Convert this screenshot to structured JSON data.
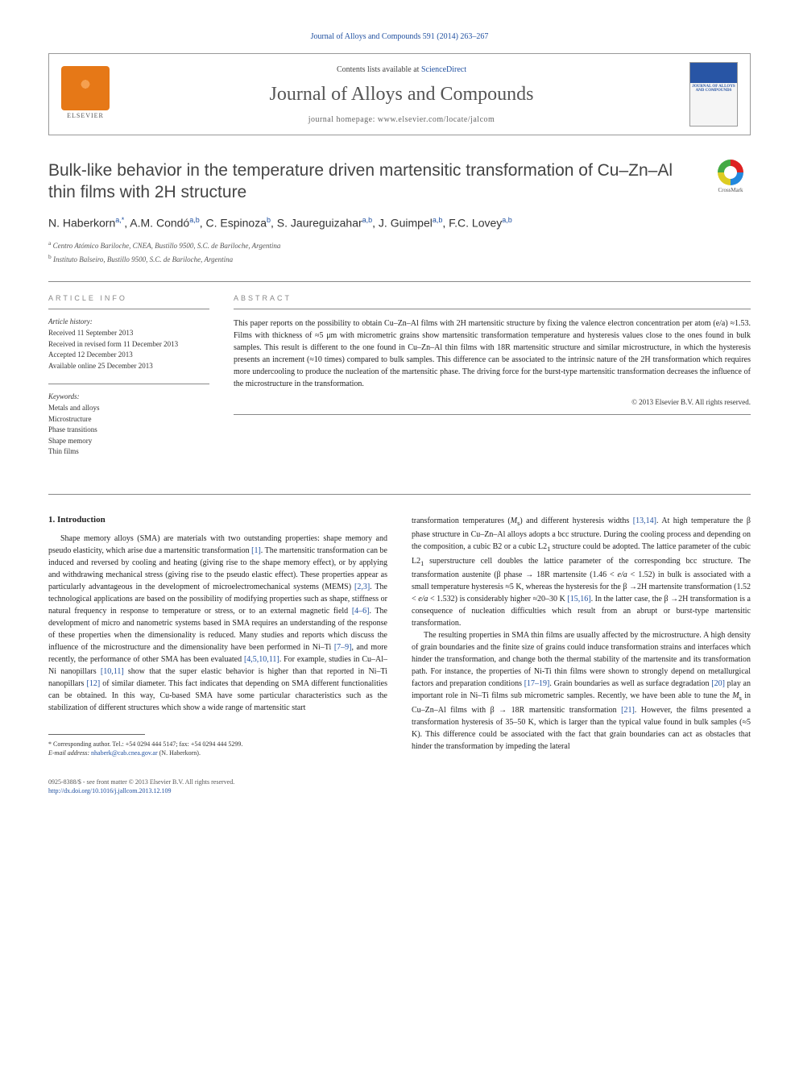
{
  "journal_ref": "Journal of Alloys and Compounds 591 (2014) 263–267",
  "header": {
    "contents_prefix": "Contents lists available at ",
    "contents_link": "ScienceDirect",
    "journal_title": "Journal of Alloys and Compounds",
    "homepage_prefix": "journal homepage: ",
    "homepage_url": "www.elsevier.com/locate/jalcom",
    "elsevier_label": "ELSEVIER",
    "cover_top_text": "JOURNAL OF ALLOYS AND COMPOUNDS"
  },
  "crossmark_label": "CrossMark",
  "article": {
    "title": "Bulk-like behavior in the temperature driven martensitic transformation of Cu–Zn–Al thin films with 2H structure",
    "authors_html": "N. Haberkorn<sup>a,*</sup>, A.M. Condó<sup>a,b</sup>, C. Espinoza<sup>b</sup>, S. Jaureguizahar<sup>a,b</sup>, J. Guimpel<sup>a,b</sup>, F.C. Lovey<sup>a,b</sup>",
    "affiliations": [
      {
        "sup": "a",
        "text": "Centro Atómico Bariloche, CNEA, Bustillo 9500, S.C. de Bariloche, Argentina"
      },
      {
        "sup": "b",
        "text": "Instituto Balseiro, Bustillo 9500, S.C. de Bariloche, Argentina"
      }
    ]
  },
  "info": {
    "heading": "ARTICLE INFO",
    "history_label": "Article history:",
    "history": [
      "Received 11 September 2013",
      "Received in revised form 11 December 2013",
      "Accepted 12 December 2013",
      "Available online 25 December 2013"
    ],
    "keywords_label": "Keywords:",
    "keywords": [
      "Metals and alloys",
      "Microstructure",
      "Phase transitions",
      "Shape memory",
      "Thin films"
    ]
  },
  "abstract": {
    "heading": "ABSTRACT",
    "text": "This paper reports on the possibility to obtain Cu–Zn–Al films with 2H martensitic structure by fixing the valence electron concentration per atom (e/a) ≈1.53. Films with thickness of ≈5 μm with micrometric grains show martensitic transformation temperature and hysteresis values close to the ones found in bulk samples. This result is different to the one found in Cu–Zn–Al thin films with 18R martensitic structure and similar microstructure, in which the hysteresis presents an increment (≈10 times) compared to bulk samples. This difference can be associated to the intrinsic nature of the 2H transformation which requires more undercooling to produce the nucleation of the martensitic phase. The driving force for the burst-type martensitic transformation decreases the influence of the microstructure in the transformation.",
    "copyright": "© 2013 Elsevier B.V. All rights reserved."
  },
  "body": {
    "section_heading": "1. Introduction",
    "col1_html": "<p>Shape memory alloys (SMA) are materials with two outstanding properties: shape memory and pseudo elasticity, which arise due a martensitic transformation <a href='#'>[1]</a>. The martensitic transformation can be induced and reversed by cooling and heating (giving rise to the shape memory effect), or by applying and withdrawing mechanical stress (giving rise to the pseudo elastic effect). These properties appear as particularly advantageous in the development of microelectromechanical systems (MEMS) <a href='#'>[2,3]</a>. The technological applications are based on the possibility of modifying properties such as shape, stiffness or natural frequency in response to temperature or stress, or to an external magnetic field <a href='#'>[4–6]</a>. The development of micro and nanometric systems based in SMA requires an understanding of the response of these properties when the dimensionality is reduced. Many studies and reports which discuss the influence of the microstructure and the dimensionality have been performed in Ni–Ti <a href='#'>[7–9]</a>, and more recently, the performance of other SMA has been evaluated <a href='#'>[4,5,10,11]</a>. For example, studies in Cu–Al–Ni nanopillars <a href='#'>[10,11]</a> show that the super elastic behavior is higher than that reported in Ni–Ti nanopillars <a href='#'>[12]</a> of similar diameter. This fact indicates that depending on SMA different functionalities can be obtained. In this way, Cu-based SMA have some particular characteristics such as the stabilization of different structures which show a wide range of martensitic start</p>",
    "col2_html": "<p style='text-indent:0'>transformation temperatures (<i>M</i><sub>s</sub>) and different hysteresis widths <a href='#'>[13,14]</a>. At high temperature the β phase structure in Cu–Zn–Al alloys adopts a bcc structure. During the cooling process and depending on the composition, a cubic B2 or a cubic L2<sub>1</sub> structure could be adopted. The lattice parameter of the cubic L2<sub>1</sub> superstructure cell doubles the lattice parameter of the corresponding bcc structure. The transformation austenite (β phase → 18R martensite (1.46 &lt; <i>e/a</i> &lt; 1.52) in bulk is associated with a small temperature hysteresis ≈5 K, whereas the hysteresis for the β →2H martensite transformation (1.52 &lt; <i>e/a</i> &lt; 1.532) is considerably higher ≈20–30 K <a href='#'>[15,16]</a>. In the latter case, the β →2H transformation is a consequence of nucleation difficulties which result from an abrupt or burst-type martensitic transformation.</p><p>The resulting properties in SMA thin films are usually affected by the microstructure. A high density of grain boundaries and the finite size of grains could induce transformation strains and interfaces which hinder the transformation, and change both the thermal stability of the martensite and its transformation path. For instance, the properties of Ni-Ti thin films were shown to strongly depend on metallurgical factors and preparation conditions <a href='#'>[17–19]</a>. Grain boundaries as well as surface degradation <a href='#'>[20]</a> play an important role in Ni–Ti films sub micrometric samples. Recently, we have been able to tune the <i>M</i><sub>s</sub> in Cu–Zn–Al films with β → 18R martensitic transformation <a href='#'>[21]</a>. However, the films presented a transformation hysteresis of 35–50 K, which is larger than the typical value found in bulk samples (≈5 K). This difference could be associated with the fact that grain boundaries can act as obstacles that hinder the transformation by impeding the lateral</p>"
  },
  "footnote": {
    "corr_label": "* Corresponding author. Tel.: +54 0294 444 5147; fax: +54 0294 444 5299.",
    "email_label": "E-mail address:",
    "email": "nhaberk@cab.cnea.gov.ar",
    "email_name": "(N. Haberkorn)."
  },
  "footer": {
    "issn_line": "0925-8388/$ - see front matter © 2013 Elsevier B.V. All rights reserved.",
    "doi_url": "http://dx.doi.org/10.1016/j.jallcom.2013.12.109"
  },
  "colors": {
    "link": "#2050a0",
    "heading_gray": "#888",
    "text": "#222",
    "elsevier_orange": "#e67817"
  }
}
